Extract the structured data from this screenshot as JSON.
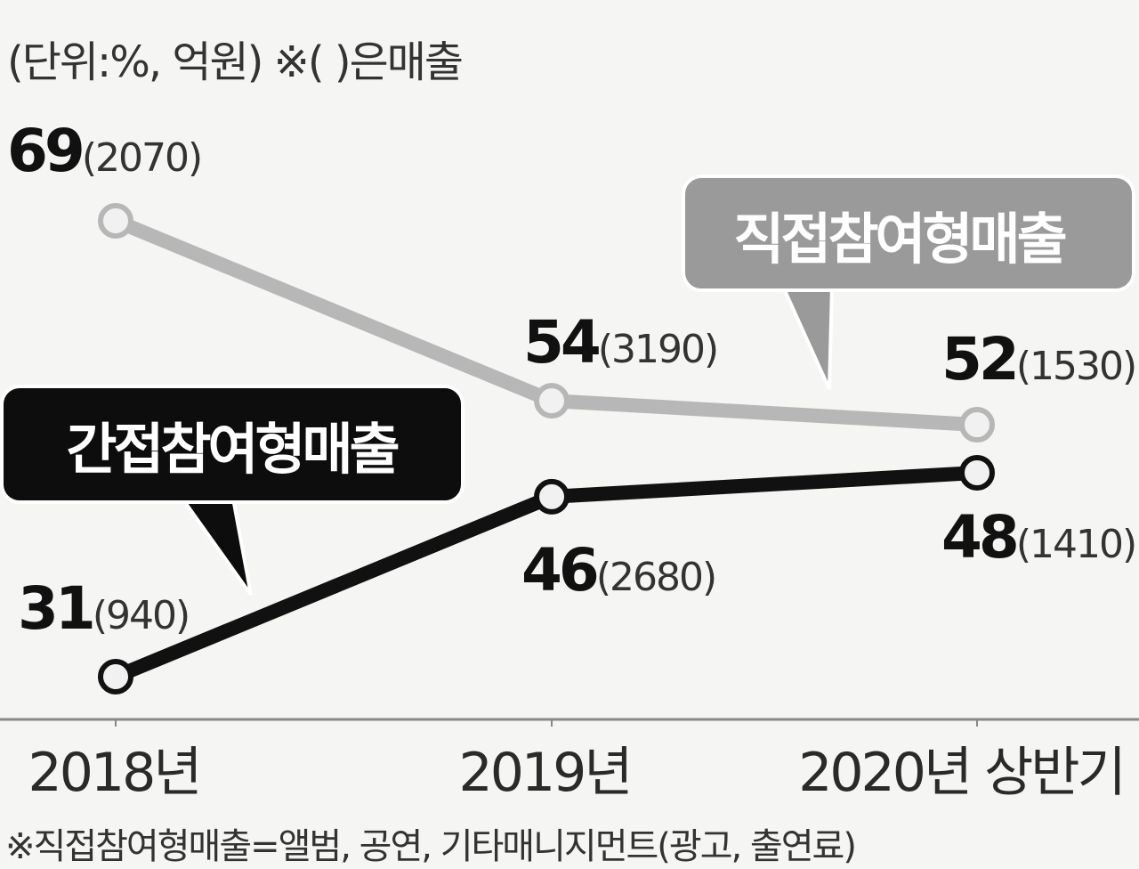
{
  "unit_note": "(단위:%, 억원) ※( )은매출",
  "footnote": "※직접참여형매출=앨범, 공연, 기타매니지먼트(광고, 출연료)",
  "colors": {
    "direct": "#b7b7b7",
    "indirect": "#111111",
    "direct_label_bg": "#9a9a9a",
    "indirect_label_bg": "#0d0d0d",
    "axis": "#888888",
    "background": "#f5f5f3"
  },
  "chart_data": {
    "type": "line",
    "categories": [
      "2018년",
      "2019년",
      "2020년 상반기"
    ],
    "ylim": [
      0,
      100
    ],
    "series": [
      {
        "name": "직접참여형매출",
        "key": "direct",
        "values": [
          69,
          54,
          52
        ],
        "sales": [
          "2070",
          "3190",
          "1530"
        ],
        "value_labels": [
          "69",
          "54",
          "52"
        ],
        "sales_labels": [
          "(2070)",
          "(3190)",
          "(1530)"
        ]
      },
      {
        "name": "간접참여형매출",
        "key": "indirect",
        "values": [
          31,
          46,
          48
        ],
        "sales": [
          "940",
          "2680",
          "1410"
        ],
        "value_labels": [
          "31",
          "46",
          "48"
        ],
        "sales_labels": [
          "(940)",
          "(2680)",
          "(1410)"
        ]
      }
    ]
  }
}
